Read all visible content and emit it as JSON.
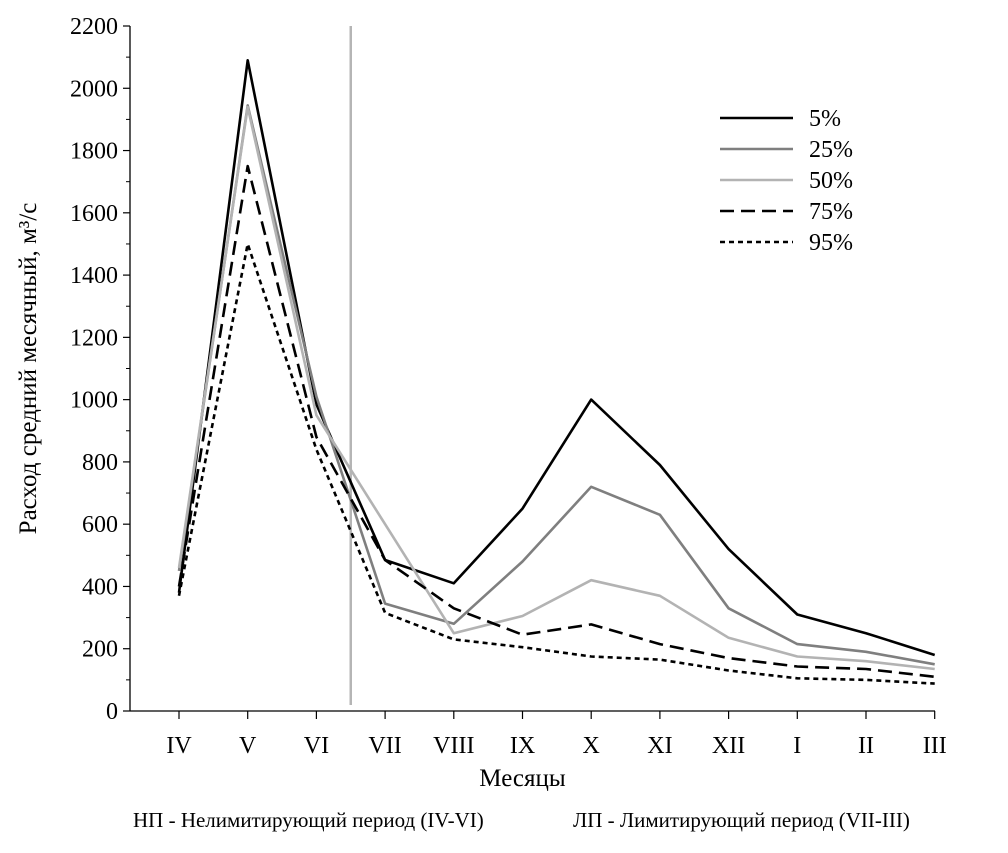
{
  "chart_data": {
    "type": "line",
    "ylabel": "Расход средний месячный, м³/с",
    "xlabel": "Месяцы",
    "ylim": [
      0,
      2200
    ],
    "yticks": [
      0,
      200,
      400,
      600,
      800,
      1000,
      1200,
      1400,
      1600,
      1800,
      2000,
      2200
    ],
    "categories": [
      "IV",
      "V",
      "VI",
      "VII",
      "VIII",
      "IX",
      "X",
      "XI",
      "XII",
      "I",
      "II",
      "III"
    ],
    "separator_between": [
      "VI",
      "VII"
    ],
    "legend_position": "top-right",
    "grid": false,
    "series": [
      {
        "name": "5%",
        "color": "#000000",
        "dash": "solid",
        "values": [
          380,
          2090,
          985,
          485,
          410,
          650,
          1000,
          790,
          520,
          310,
          250,
          180
        ]
      },
      {
        "name": "25%",
        "color": "#7f7f7f",
        "dash": "solid",
        "values": [
          450,
          1945,
          1010,
          345,
          280,
          480,
          720,
          630,
          330,
          215,
          190,
          150
        ]
      },
      {
        "name": "50%",
        "color": "#b3b3b3",
        "dash": "solid",
        "values": [
          460,
          1940,
          950,
          600,
          250,
          305,
          420,
          370,
          235,
          175,
          160,
          135
        ]
      },
      {
        "name": "75%",
        "color": "#000000",
        "dash": "dashed",
        "values": [
          400,
          1750,
          880,
          485,
          330,
          245,
          278,
          215,
          170,
          143,
          135,
          110
        ]
      },
      {
        "name": "95%",
        "color": "#000000",
        "dash": "dotted",
        "values": [
          370,
          1500,
          840,
          315,
          230,
          205,
          175,
          165,
          130,
          105,
          100,
          88
        ]
      }
    ],
    "notes": [
      "НП - Нелимитирующий период (IV-VI)",
      "ЛП - Лимитирующий период (VII-III)"
    ]
  }
}
